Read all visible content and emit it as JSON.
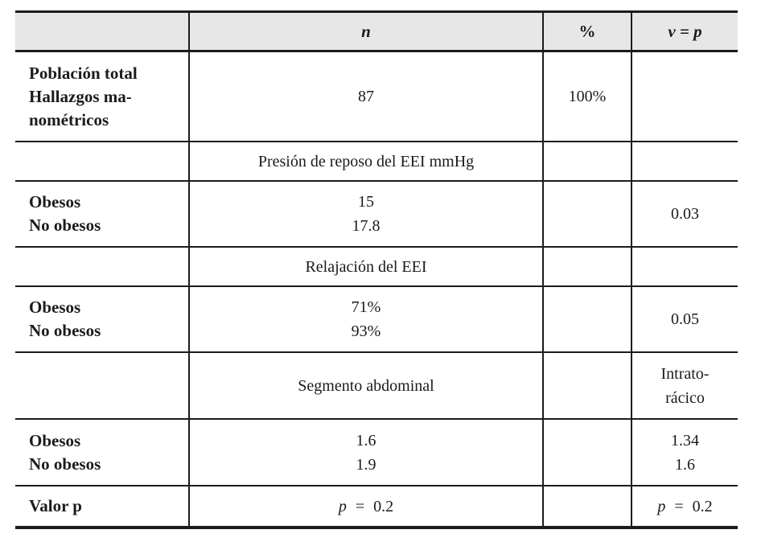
{
  "colors": {
    "header_bg": "#e7e7e7",
    "border": "#1c1c1c",
    "text": "#1b1b1b"
  },
  "table": {
    "header": {
      "label": "",
      "n": "n",
      "percent": "%",
      "vp": "v = p"
    },
    "rows": {
      "population": {
        "label_line1": "Población total",
        "label_line2": "Hallazgos ma-",
        "label_line3": "nométricos",
        "n": "87",
        "percent": "100%",
        "vp": ""
      },
      "section_pressure": {
        "title": "Presión de reposo del EEI mmHg"
      },
      "pressure_values": {
        "label_line1": "Obesos",
        "label_line2": "No obesos",
        "n_line1": "15",
        "n_line2": "17.8",
        "vp": "0.03"
      },
      "section_relaxation": {
        "title": "Relajación del EEI"
      },
      "relaxation_values": {
        "label_line1": "Obesos",
        "label_line2": "No obesos",
        "n_line1": "71%",
        "n_line2": "93%",
        "vp": "0.05"
      },
      "section_segment": {
        "title": "Segmento abdominal",
        "vp_line1": "Intrato-",
        "vp_line2": "rácico"
      },
      "segment_values": {
        "label_line1": "Obesos",
        "label_line2": "No obesos",
        "n_line1": "1.6",
        "n_line2": "1.9",
        "vp_line1": "1.34",
        "vp_line2": "1.6"
      },
      "p_value": {
        "label": "Valor p",
        "n": "p =  0.2",
        "vp": "p =  0.2"
      }
    }
  }
}
